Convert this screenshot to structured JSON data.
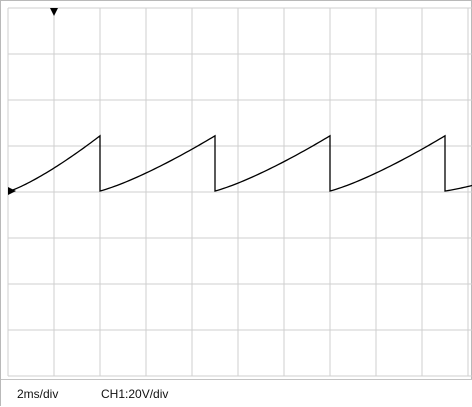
{
  "colors": {
    "grid": "#cfcfcf",
    "trace": "#000000",
    "marker": "#000000",
    "background": "#ffffff"
  },
  "status": {
    "timebase": "2ms/div",
    "ch1_scale": "CH1:20V/div"
  },
  "chart_data": {
    "type": "line",
    "title": "",
    "xlabel": "",
    "ylabel": "",
    "grid": true,
    "divisions": {
      "x": 10,
      "y": 8
    },
    "timebase_ms_per_div": 2,
    "volts_per_div": 20,
    "xlim_ms": [
      0,
      20.3
    ],
    "ylim_V": [
      -20,
      60
    ],
    "trigger_time_ms": 0,
    "ground_level_V": 0,
    "series": [
      {
        "waveform": "sawtooth",
        "period_ms": 5.0,
        "segments": [
          {
            "t_start_ms": -1.92,
            "t_end_ms": 2.0,
            "v_start_V": 0,
            "v_end_V": 24.0,
            "shape": "rising-curve"
          },
          {
            "t_start_ms": 2.0,
            "t_end_ms": 7.0,
            "v_start_V": 0,
            "v_end_V": 24.0,
            "shape": "rising-curve"
          },
          {
            "t_start_ms": 7.0,
            "t_end_ms": 12.0,
            "v_start_V": 0,
            "v_end_V": 24.0,
            "shape": "rising-curve"
          },
          {
            "t_start_ms": 12.0,
            "t_end_ms": 17.0,
            "v_start_V": 0,
            "v_end_V": 24.0,
            "shape": "rising-curve"
          },
          {
            "t_start_ms": 17.0,
            "t_end_ms": 20.3,
            "v_start_V": 0,
            "v_end_V": 8.4,
            "shape": "rising-curve"
          }
        ]
      }
    ]
  }
}
